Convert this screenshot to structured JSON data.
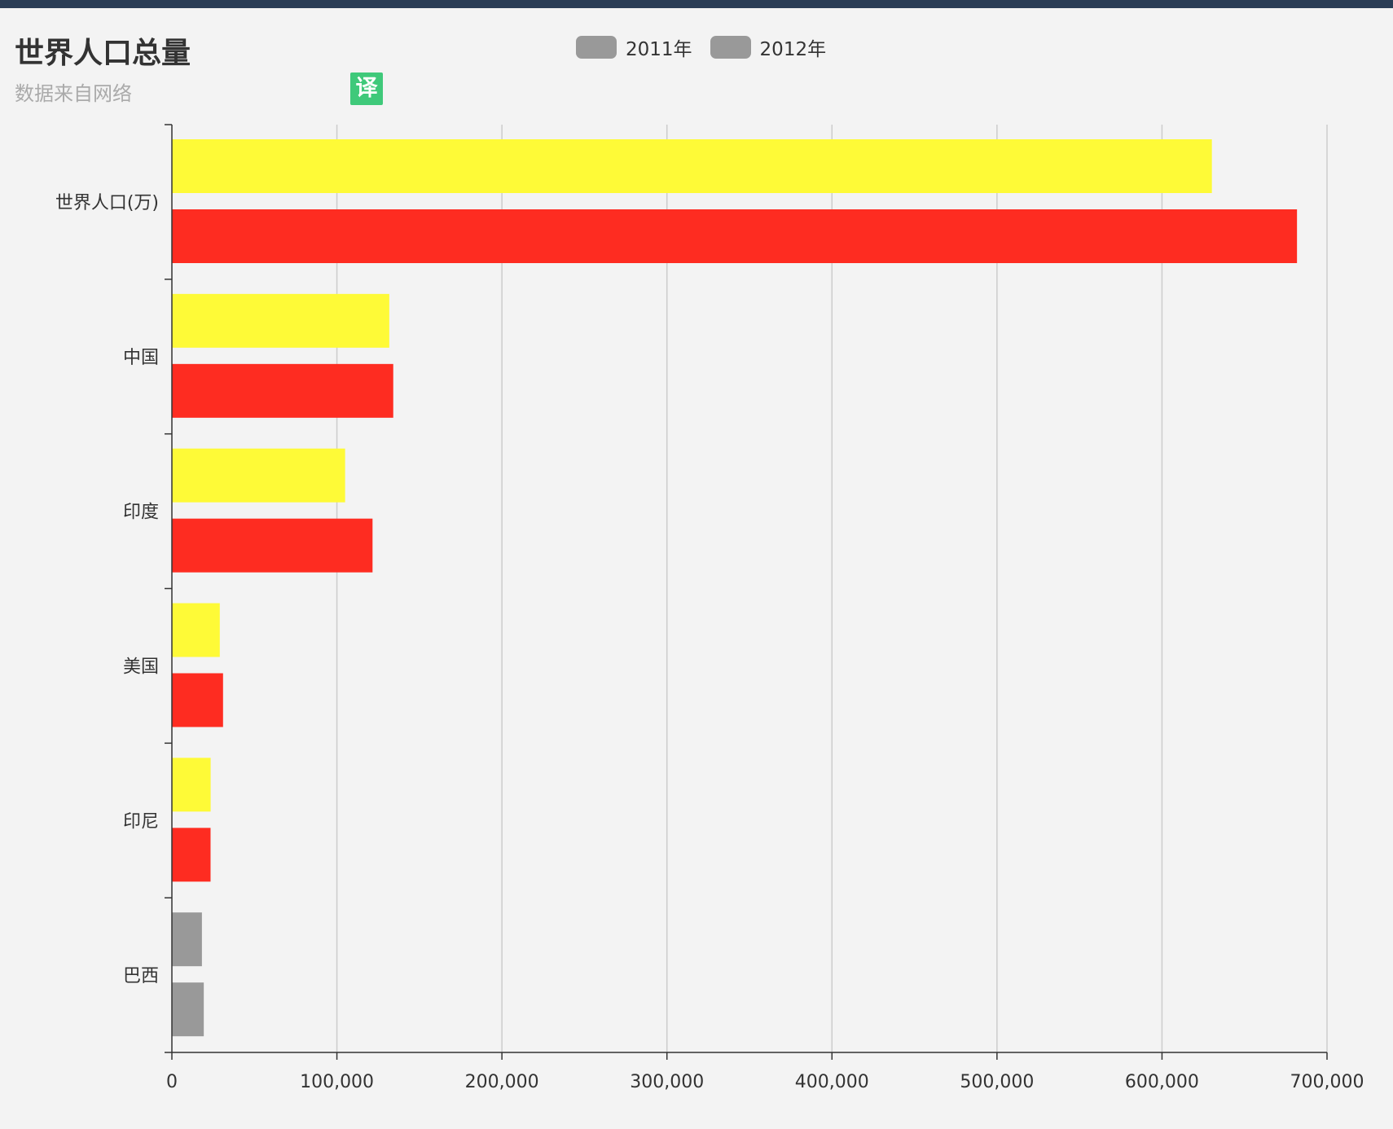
{
  "chart_data": {
    "type": "bar",
    "orientation": "horizontal",
    "title": "世界人口总量",
    "subtitle": "数据来自网络",
    "categories": [
      "世界人口(万)",
      "中国",
      "印度",
      "美国",
      "印尼",
      "巴西"
    ],
    "series": [
      {
        "name": "2011年",
        "values": [
          630230,
          131744,
          104970,
          29034,
          23489,
          18203
        ],
        "bar_colors": [
          "#fefa37",
          "#fefa37",
          "#fefa37",
          "#fefa37",
          "#fefa37",
          "#999999"
        ]
      },
      {
        "name": "2012年",
        "values": [
          681807,
          134141,
          121594,
          31000,
          23438,
          19325
        ],
        "bar_colors": [
          "#fe2c21",
          "#fe2c21",
          "#fe2c21",
          "#fe2c21",
          "#fe2c21",
          "#999999"
        ]
      }
    ],
    "x_ticks": [
      "0",
      "100,000",
      "200,000",
      "300,000",
      "400,000",
      "500,000",
      "600,000",
      "700,000"
    ],
    "xlim": [
      0,
      700000
    ],
    "grid": "vertical",
    "legend_position": "top-center",
    "legend_swatch_color": "#999999"
  },
  "translate_badge": {
    "label": "译",
    "color": "#3fc97a"
  },
  "colors": {
    "header_strip": "#2b3d56",
    "background": "#f3f3f3",
    "gridline": "#cccccc",
    "axis": "#333333"
  }
}
